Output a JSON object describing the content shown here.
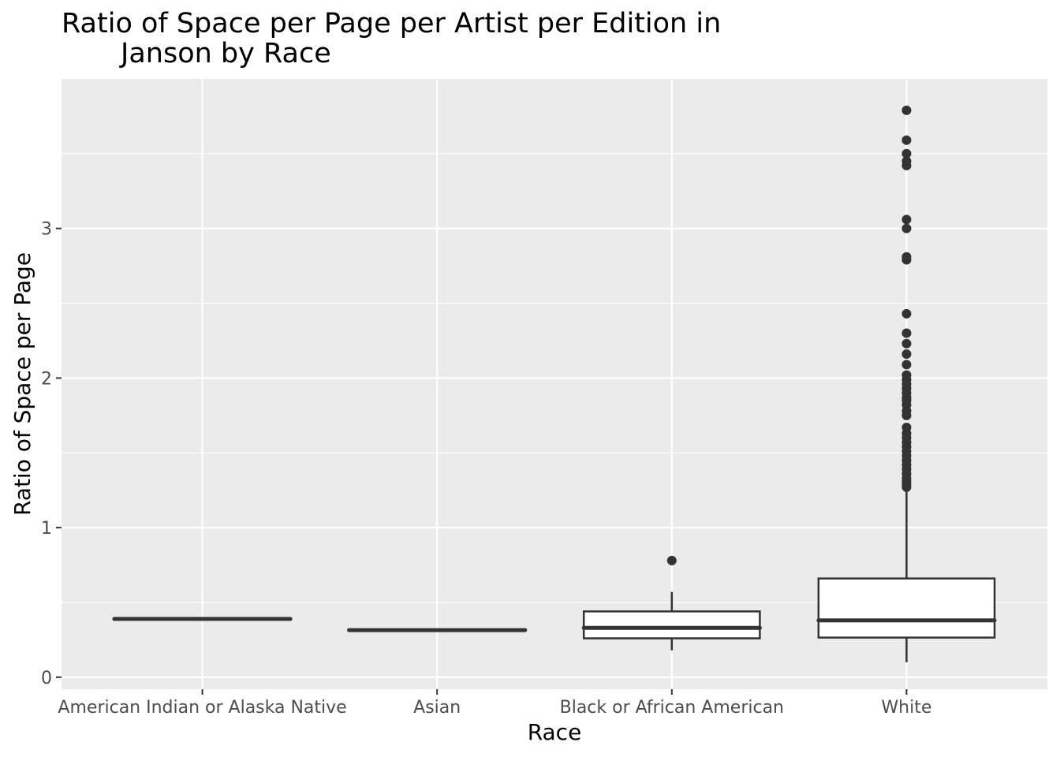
{
  "chart_data": {
    "type": "boxplot",
    "title_lines": [
      "Ratio of Space per Page per Artist per Edition in",
      "Janson by Race"
    ],
    "xlabel": "Race",
    "ylabel": "Ratio of Space per Page",
    "ylim": [
      -0.08,
      4.0
    ],
    "y_ticks": [
      0,
      1,
      2,
      3
    ],
    "y_tick_labels": [
      "0",
      "1",
      "2",
      "3"
    ],
    "grid": true,
    "colors": {
      "panel": "#ebebeb",
      "grid": "#ffffff",
      "box_fill": "#ffffff",
      "box_line": "#333333",
      "outlier": "#333333"
    },
    "categories": [
      "American Indian or Alaska Native",
      "Asian",
      "Black or African American",
      "White"
    ],
    "boxes": [
      {
        "category": "American Indian or Alaska Native",
        "whisker_low": 0.39,
        "q1": 0.39,
        "median": 0.39,
        "q3": 0.39,
        "whisker_high": 0.39,
        "outliers": []
      },
      {
        "category": "Asian",
        "whisker_low": 0.315,
        "q1": 0.315,
        "median": 0.315,
        "q3": 0.315,
        "whisker_high": 0.315,
        "outliers": []
      },
      {
        "category": "Black or African American",
        "whisker_low": 0.18,
        "q1": 0.26,
        "median": 0.33,
        "q3": 0.44,
        "whisker_high": 0.57,
        "outliers": [
          0.78
        ]
      },
      {
        "category": "White",
        "whisker_low": 0.1,
        "q1": 0.265,
        "median": 0.38,
        "q3": 0.66,
        "whisker_high": 1.25,
        "outliers": [
          1.27,
          1.29,
          1.31,
          1.33,
          1.36,
          1.39,
          1.42,
          1.45,
          1.48,
          1.51,
          1.54,
          1.57,
          1.6,
          1.63,
          1.67,
          1.75,
          1.78,
          1.82,
          1.85,
          1.87,
          1.9,
          1.93,
          1.96,
          1.99,
          2.02,
          2.09,
          2.16,
          2.23,
          2.3,
          2.43,
          2.79,
          2.81,
          3.0,
          3.06,
          3.42,
          3.45,
          3.5,
          3.59,
          3.79
        ]
      }
    ]
  }
}
